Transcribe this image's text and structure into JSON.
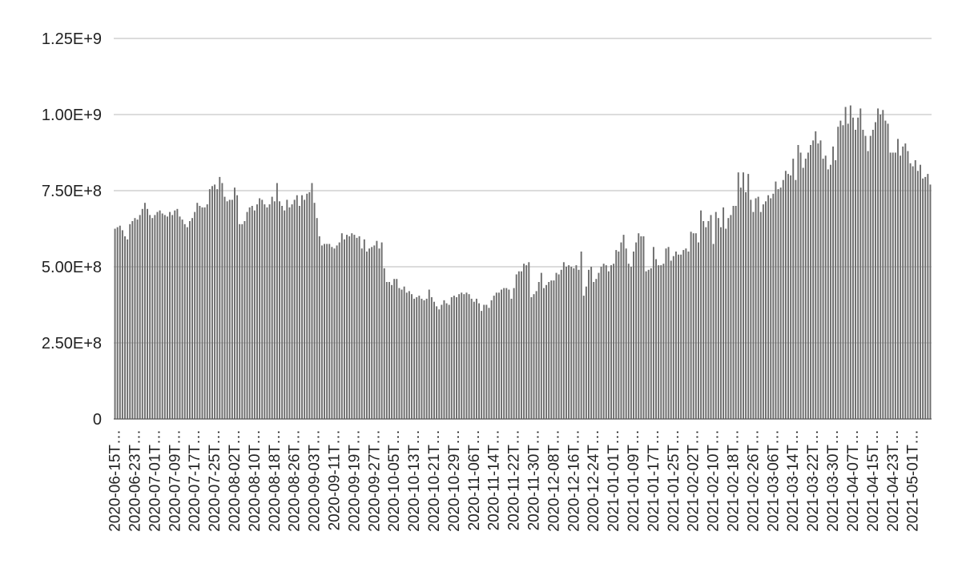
{
  "chart_data": {
    "type": "bar",
    "title": "",
    "xlabel": "",
    "ylabel": "",
    "ylim": [
      0,
      1250000000
    ],
    "grid": true,
    "legend": "none",
    "colors": {
      "bar": "#6d6d6d",
      "grid": "#d0d0d0",
      "axis": "#555555"
    },
    "y_ticks": [
      {
        "value": 0,
        "label": "0"
      },
      {
        "value": 250000000,
        "label": "2.50E+8"
      },
      {
        "value": 500000000,
        "label": "5.00E+8"
      },
      {
        "value": 750000000,
        "label": "7.50E+8"
      },
      {
        "value": 1000000000,
        "label": "1.00E+9"
      },
      {
        "value": 1250000000,
        "label": "1.25E+9"
      }
    ],
    "x_tick_labels": [
      "2020-06-15T…",
      "2020-06-23T…",
      "2020-07-01T…",
      "2020-07-09T…",
      "2020-07-17T…",
      "2020-07-25T…",
      "2020-08-02T…",
      "2020-08-10T…",
      "2020-08-18T…",
      "2020-08-26T…",
      "2020-09-03T…",
      "2020-09-11T…",
      "2020-09-19T…",
      "2020-09-27T…",
      "2020-10-05T…",
      "2020-10-13T…",
      "2020-10-21T…",
      "2020-10-29T…",
      "2020-11-06T…",
      "2020-11-14T…",
      "2020-11-22T…",
      "2020-11-30T…",
      "2020-12-08T…",
      "2020-12-16T…",
      "2020-12-24T…",
      "2021-01-01T…",
      "2021-01-09T…",
      "2021-01-17T…",
      "2021-01-25T…",
      "2021-02-02T…",
      "2021-02-10T…",
      "2021-02-18T…",
      "2021-02-26T…",
      "2021-03-06T…",
      "2021-03-14T…",
      "2021-03-22T…",
      "2021-03-30T…",
      "2021-04-07T…",
      "2021-04-15T…",
      "2021-04-23T…",
      "2021-05-01T…"
    ],
    "series": [
      {
        "values": [
          625000000.0,
          630000000.0,
          635000000.0,
          620000000.0,
          600000000.0,
          590000000.0,
          640000000.0,
          650000000.0,
          660000000.0,
          655000000.0,
          670000000.0,
          690000000.0,
          710000000.0,
          690000000.0,
          670000000.0,
          660000000.0,
          670000000.0,
          680000000.0,
          685000000.0,
          675000000.0,
          670000000.0,
          665000000.0,
          680000000.0,
          670000000.0,
          685000000.0,
          690000000.0,
          665000000.0,
          655000000.0,
          640000000.0,
          630000000.0,
          650000000.0,
          660000000.0,
          680000000.0,
          710000000.0,
          700000000.0,
          695000000.0,
          695000000.0,
          705000000.0,
          755000000.0,
          765000000.0,
          770000000.0,
          755000000.0,
          795000000.0,
          775000000.0,
          730000000.0,
          715000000.0,
          720000000.0,
          720000000.0,
          760000000.0,
          735000000.0,
          640000000.0,
          640000000.0,
          650000000.0,
          680000000.0,
          695000000.0,
          700000000.0,
          685000000.0,
          705000000.0,
          725000000.0,
          720000000.0,
          705000000.0,
          695000000.0,
          705000000.0,
          730000000.0,
          715000000.0,
          775000000.0,
          715000000.0,
          700000000.0,
          685000000.0,
          720000000.0,
          695000000.0,
          705000000.0,
          720000000.0,
          735000000.0,
          700000000.0,
          735000000.0,
          720000000.0,
          740000000.0,
          745000000.0,
          775000000.0,
          710000000.0,
          660000000.0,
          600000000.0,
          570000000.0,
          575000000.0,
          575000000.0,
          575000000.0,
          565000000.0,
          560000000.0,
          570000000.0,
          580000000.0,
          610000000.0,
          590000000.0,
          605000000.0,
          600000000.0,
          610000000.0,
          605000000.0,
          595000000.0,
          600000000.0,
          560000000.0,
          590000000.0,
          550000000.0,
          560000000.0,
          565000000.0,
          570000000.0,
          585000000.0,
          560000000.0,
          580000000.0,
          495000000.0,
          450000000.0,
          450000000.0,
          440000000.0,
          460000000.0,
          460000000.0,
          430000000.0,
          425000000.0,
          435000000.0,
          415000000.0,
          420000000.0,
          410000000.0,
          395000000.0,
          400000000.0,
          405000000.0,
          395000000.0,
          390000000.0,
          395000000.0,
          425000000.0,
          400000000.0,
          385000000.0,
          370000000.0,
          360000000.0,
          375000000.0,
          390000000.0,
          380000000.0,
          375000000.0,
          400000000.0,
          405000000.0,
          400000000.0,
          410000000.0,
          415000000.0,
          410000000.0,
          415000000.0,
          410000000.0,
          395000000.0,
          385000000.0,
          395000000.0,
          380000000.0,
          355000000.0,
          375000000.0,
          375000000.0,
          365000000.0,
          390000000.0,
          405000000.0,
          415000000.0,
          415000000.0,
          425000000.0,
          430000000.0,
          430000000.0,
          425000000.0,
          395000000.0,
          430000000.0,
          475000000.0,
          485000000.0,
          485000000.0,
          510000000.0,
          505000000.0,
          515000000.0,
          400000000.0,
          410000000.0,
          420000000.0,
          450000000.0,
          480000000.0,
          430000000.0,
          440000000.0,
          450000000.0,
          455000000.0,
          455000000.0,
          480000000.0,
          475000000.0,
          490000000.0,
          515000000.0,
          500000000.0,
          505000000.0,
          500000000.0,
          495000000.0,
          505000000.0,
          490000000.0,
          550000000.0,
          405000000.0,
          435000000.0,
          490000000.0,
          500000000.0,
          450000000.0,
          460000000.0,
          480000000.0,
          500000000.0,
          510000000.0,
          505000000.0,
          485000000.0,
          505000000.0,
          510000000.0,
          555000000.0,
          550000000.0,
          580000000.0,
          605000000.0,
          560000000.0,
          510000000.0,
          500000000.0,
          550000000.0,
          580000000.0,
          610000000.0,
          600000000.0,
          600000000.0,
          485000000.0,
          490000000.0,
          495000000.0,
          565000000.0,
          525000000.0,
          505000000.0,
          505000000.0,
          510000000.0,
          560000000.0,
          565000000.0,
          520000000.0,
          535000000.0,
          550000000.0,
          540000000.0,
          540000000.0,
          555000000.0,
          560000000.0,
          550000000.0,
          615000000.0,
          610000000.0,
          610000000.0,
          580000000.0,
          685000000.0,
          650000000.0,
          630000000.0,
          650000000.0,
          670000000.0,
          575000000.0,
          680000000.0,
          660000000.0,
          630000000.0,
          695000000.0,
          625000000.0,
          660000000.0,
          670000000.0,
          700000000.0,
          700000000.0,
          810000000.0,
          760000000.0,
          810000000.0,
          745000000.0,
          805000000.0,
          720000000.0,
          680000000.0,
          725000000.0,
          730000000.0,
          680000000.0,
          705000000.0,
          715000000.0,
          735000000.0,
          725000000.0,
          740000000.0,
          780000000.0,
          755000000.0,
          760000000.0,
          785000000.0,
          815000000.0,
          805000000.0,
          800000000.0,
          855000000.0,
          785000000.0,
          900000000.0,
          875000000.0,
          825000000.0,
          855000000.0,
          875000000.0,
          900000000.0,
          915000000.0,
          945000000.0,
          905000000.0,
          915000000.0,
          855000000.0,
          865000000.0,
          820000000.0,
          835000000.0,
          895000000.0,
          850000000.0,
          960000000.0,
          980000000.0,
          965000000.0,
          1025000000.0,
          970000000.0,
          1030000000.0,
          990000000.0,
          950000000.0,
          990000000.0,
          1020000000.0,
          950000000.0,
          930000000.0,
          880000000.0,
          930000000.0,
          950000000.0,
          975000000.0,
          1020000000.0,
          1000000000.0,
          1015000000.0,
          980000000.0,
          970000000.0,
          875000000.0,
          875000000.0,
          875000000.0,
          920000000.0,
          865000000.0,
          895000000.0,
          905000000.0,
          880000000.0,
          840000000.0,
          830000000.0,
          850000000.0,
          815000000.0,
          835000000.0,
          790000000.0,
          795000000.0,
          805000000.0,
          770000000.0
        ]
      }
    ]
  }
}
